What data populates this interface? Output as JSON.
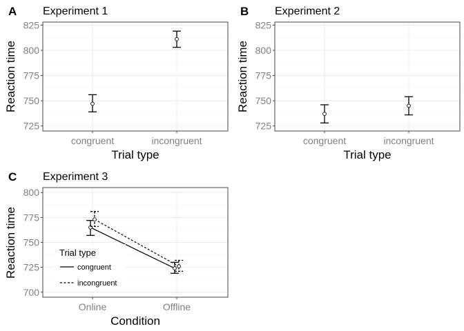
{
  "chart_data": [
    {
      "panel": "A",
      "type": "scatter",
      "title": "Experiment 1",
      "xlabel": "Trial type",
      "ylabel": "Reaction time",
      "categories": [
        "congruent",
        "incongruent"
      ],
      "ylim": [
        720,
        828
      ],
      "yticks": [
        725,
        750,
        775,
        800,
        825
      ],
      "series": [
        {
          "name": "",
          "values": [
            747,
            811
          ],
          "lower": [
            739,
            803
          ],
          "upper": [
            756,
            819
          ],
          "dash": "solid",
          "connect": false
        }
      ],
      "grid": true,
      "legend": null
    },
    {
      "panel": "B",
      "type": "scatter",
      "title": "Experiment 2",
      "xlabel": "Trial type",
      "ylabel": "Reaction time",
      "categories": [
        "congruent",
        "incongruent"
      ],
      "ylim": [
        720,
        828
      ],
      "yticks": [
        725,
        750,
        775,
        800,
        825
      ],
      "series": [
        {
          "name": "",
          "values": [
            737,
            745
          ],
          "lower": [
            728,
            736
          ],
          "upper": [
            746,
            754
          ],
          "dash": "solid",
          "connect": false
        }
      ],
      "grid": true,
      "legend": null
    },
    {
      "panel": "C",
      "type": "line",
      "title": "Experiment 3",
      "xlabel": "Condition",
      "ylabel": "Reaction time",
      "categories": [
        "Online",
        "Offline"
      ],
      "ylim": [
        695,
        805
      ],
      "yticks": [
        700,
        725,
        750,
        775,
        800
      ],
      "series": [
        {
          "name": "congruent",
          "values": [
            765,
            724
          ],
          "lower": [
            757,
            719
          ],
          "upper": [
            772,
            730
          ],
          "dash": "solid",
          "connect": true
        },
        {
          "name": "incongruent",
          "values": [
            773,
            726
          ],
          "lower": [
            766,
            721
          ],
          "upper": [
            781,
            732
          ],
          "dash": "dashed",
          "connect": true
        }
      ],
      "grid": true,
      "legend": {
        "title": "Trial type",
        "position": "bottom-left"
      }
    }
  ]
}
